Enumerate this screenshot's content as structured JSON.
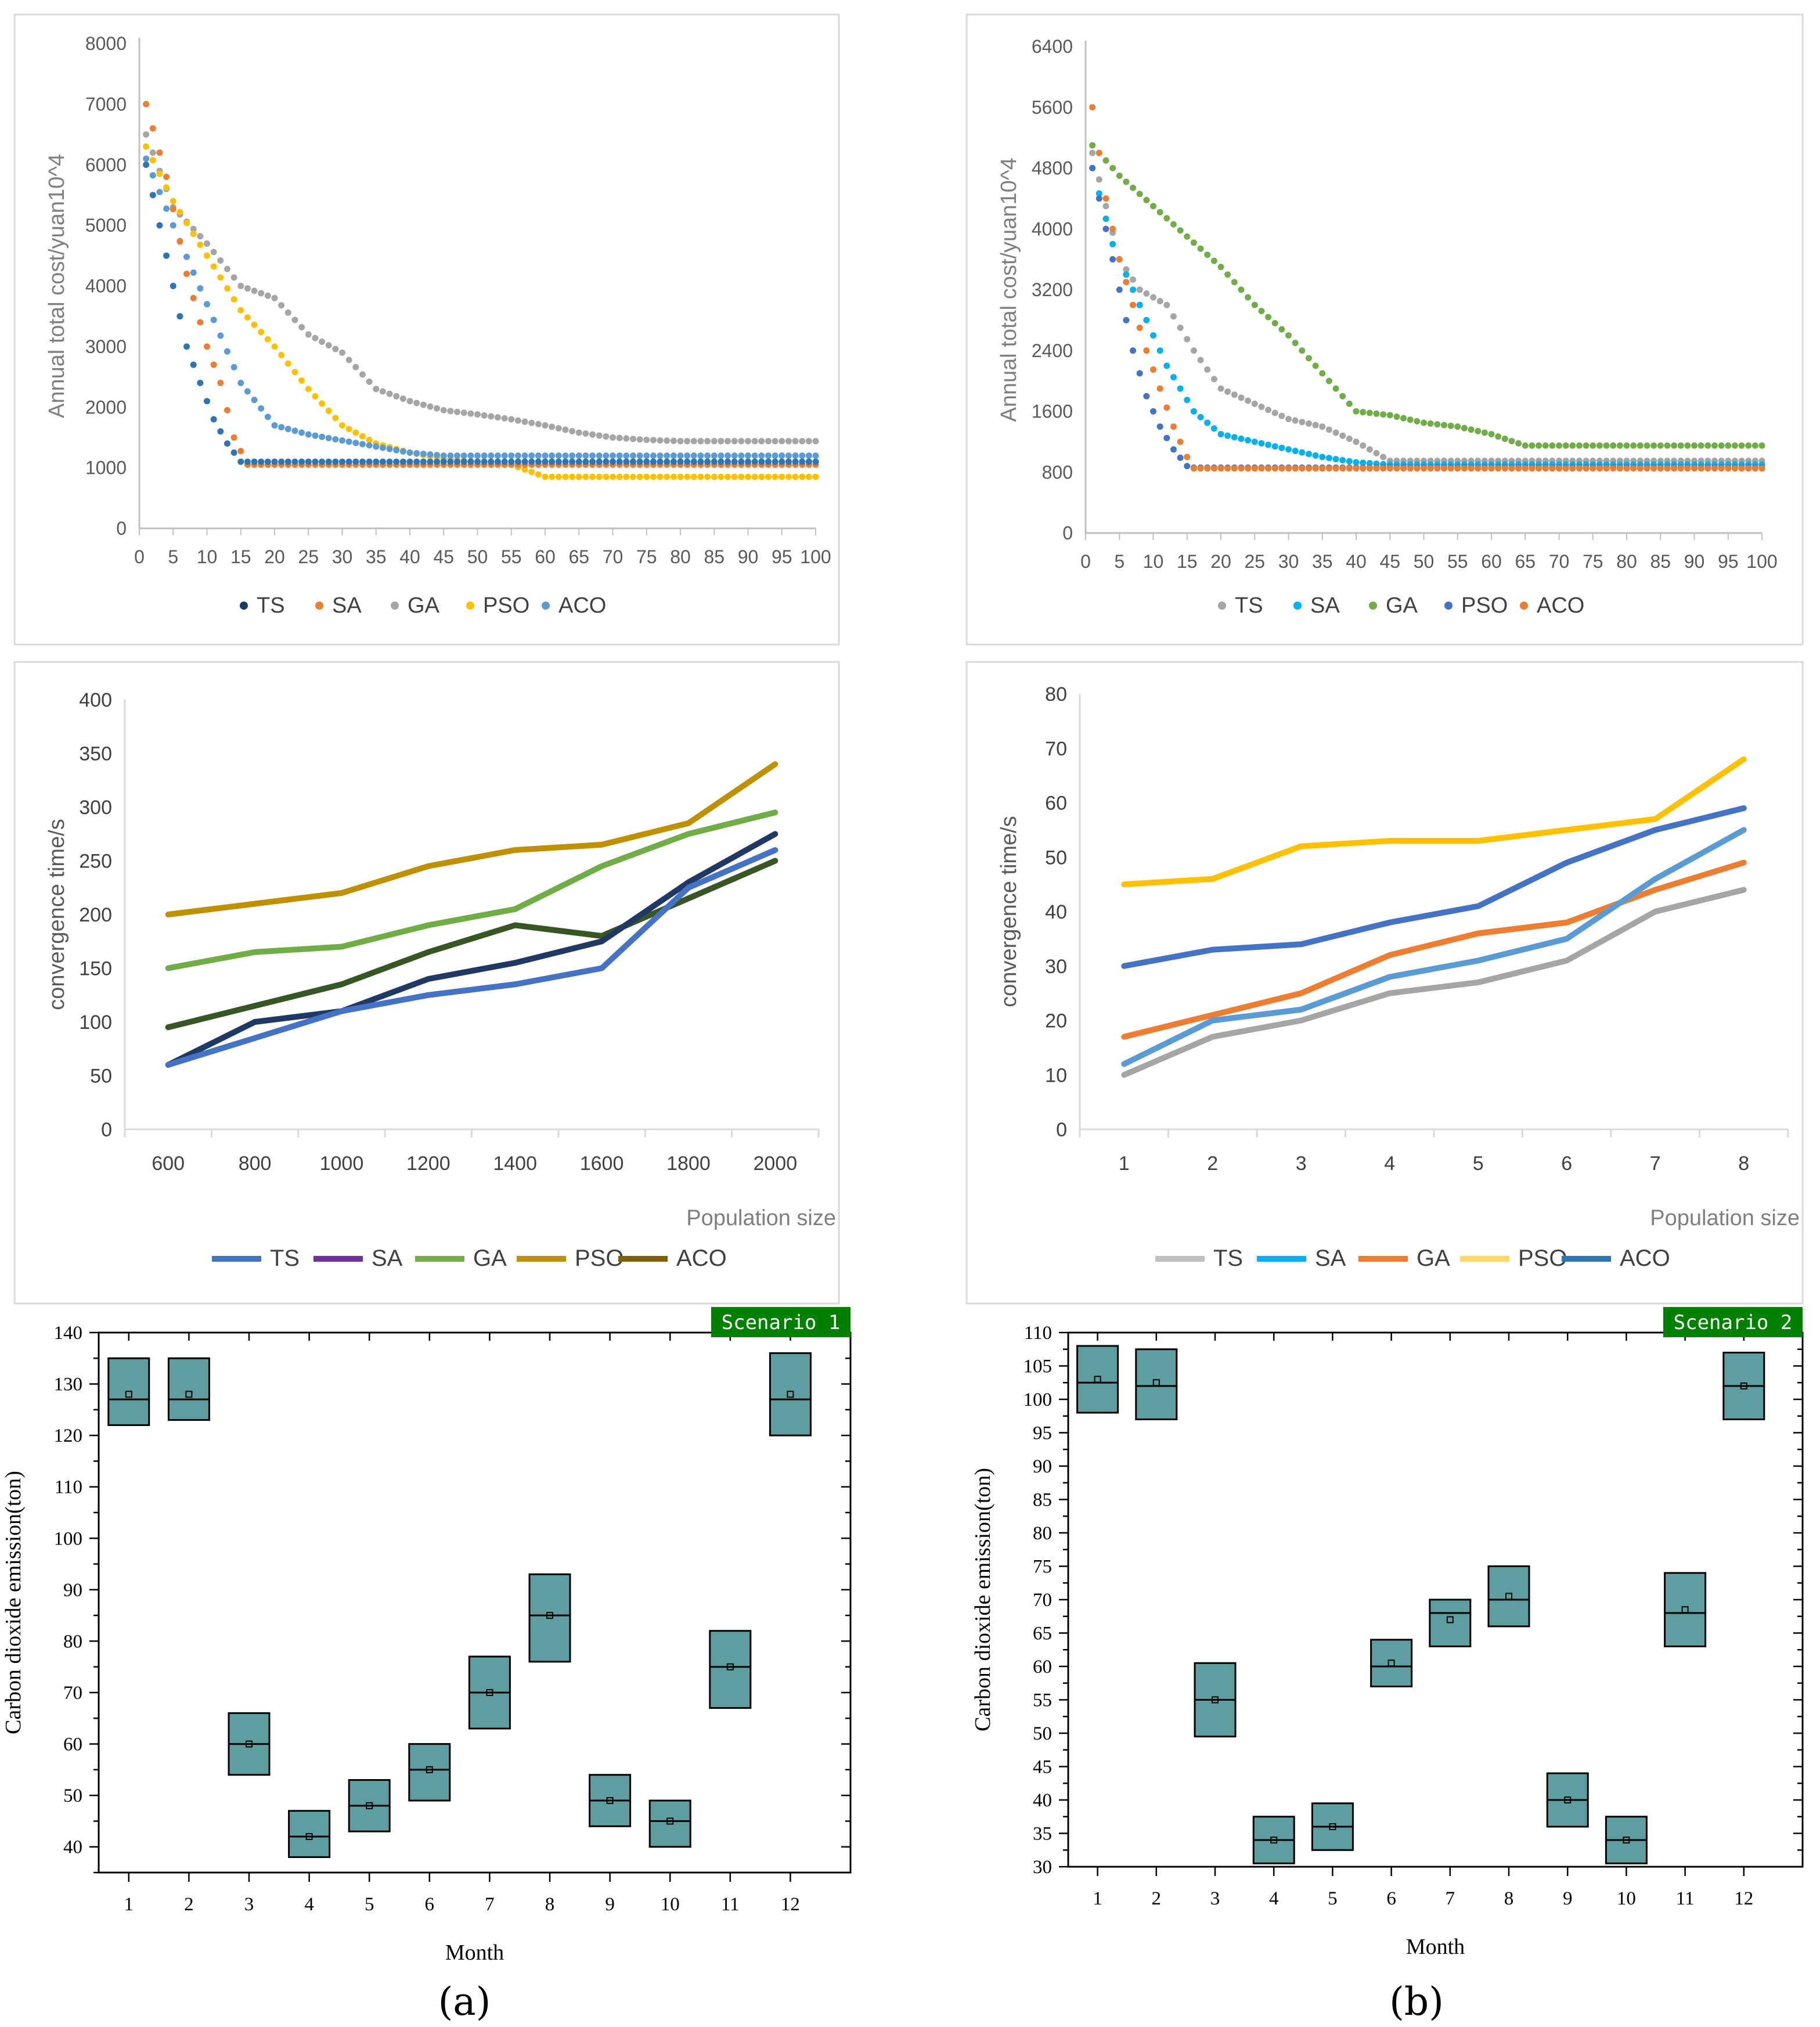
{
  "colors": {
    "TS": "#2e75b6",
    "SA": "#ed7d31",
    "GA": "#a5a5a5",
    "PSO": "#ffc000",
    "ACO": "#5b9bd5",
    "green": "#70ad47",
    "navy": "#203864",
    "olive": "#7f6000",
    "gold": "#bf9000",
    "darkgreen": "#375623",
    "box": "#5f9ea0",
    "badge": "#008000"
  },
  "panel_labels": [
    "(a)",
    "(b)"
  ],
  "chart_data": [
    {
      "id": "cost-a",
      "type": "scatter",
      "ylabel": "Annual total cost/yuan10^4",
      "xlim": [
        0,
        100
      ],
      "ylim": [
        0,
        8000
      ],
      "xticks": [
        0,
        5,
        10,
        15,
        20,
        25,
        30,
        35,
        40,
        45,
        50,
        55,
        60,
        65,
        70,
        75,
        80,
        85,
        90,
        95,
        100
      ],
      "yticks": [
        0,
        1000,
        2000,
        3000,
        4000,
        5000,
        6000,
        7000,
        8000
      ],
      "legend": [
        {
          "name": "TS",
          "color": "#203864"
        },
        {
          "name": "SA",
          "color": "#ed7d31"
        },
        {
          "name": "GA",
          "color": "#a5a5a5"
        },
        {
          "name": "PSO",
          "color": "#ffc000"
        },
        {
          "name": "ACO",
          "color": "#5b9bd5"
        }
      ],
      "series": [
        {
          "name": "GA",
          "color": "#a5a5a5",
          "x": [
            1,
            5,
            10,
            15,
            20,
            25,
            30,
            35,
            40,
            45,
            50,
            55,
            60,
            65,
            70,
            75,
            80,
            85,
            90,
            95,
            100
          ],
          "y": [
            6500,
            5300,
            4700,
            4000,
            3800,
            3200,
            2900,
            2300,
            2100,
            1950,
            1880,
            1800,
            1700,
            1580,
            1500,
            1460,
            1440,
            1440,
            1440,
            1440,
            1440
          ]
        },
        {
          "name": "PSO",
          "color": "#ffc000",
          "x": [
            1,
            5,
            10,
            15,
            20,
            25,
            30,
            35,
            40,
            45,
            50,
            55,
            60,
            65,
            70,
            75,
            80,
            85,
            90,
            95,
            100
          ],
          "y": [
            6300,
            5400,
            4500,
            3600,
            3000,
            2300,
            1700,
            1400,
            1250,
            1150,
            1100,
            1050,
            850,
            850,
            850,
            850,
            850,
            850,
            850,
            850,
            850
          ]
        },
        {
          "name": "ACO",
          "color": "#5b9bd5",
          "x": [
            1,
            5,
            10,
            15,
            20,
            25,
            30,
            35,
            40,
            45,
            50,
            55,
            60,
            65,
            70,
            75,
            80,
            85,
            90,
            95,
            100
          ],
          "y": [
            6100,
            5000,
            3700,
            2400,
            1700,
            1550,
            1450,
            1350,
            1250,
            1200,
            1200,
            1200,
            1200,
            1200,
            1200,
            1200,
            1200,
            1200,
            1200,
            1200,
            1200
          ]
        },
        {
          "name": "SA",
          "color": "#ed7d31",
          "x": [
            1,
            4,
            7,
            10,
            12,
            14,
            16,
            20,
            30,
            40,
            50,
            60,
            70,
            80,
            90,
            100
          ],
          "y": [
            7000,
            5800,
            4200,
            3000,
            2400,
            1500,
            1050,
            1050,
            1050,
            1050,
            1050,
            1050,
            1050,
            1050,
            1050,
            1050
          ]
        },
        {
          "name": "TS",
          "color": "#2e75b6",
          "x": [
            1,
            3,
            5,
            7,
            9,
            11,
            13,
            15,
            20,
            30,
            40,
            50,
            60,
            70,
            80,
            90,
            100
          ],
          "y": [
            6000,
            5000,
            4000,
            3000,
            2400,
            1800,
            1400,
            1100,
            1100,
            1100,
            1100,
            1100,
            1100,
            1100,
            1100,
            1100,
            1100
          ]
        }
      ]
    },
    {
      "id": "cost-b",
      "type": "scatter",
      "ylabel": "Annual total cost/yuan10^4",
      "xlim": [
        0,
        100
      ],
      "ylim": [
        0,
        6400
      ],
      "xticks": [
        0,
        5,
        10,
        15,
        20,
        25,
        30,
        35,
        40,
        45,
        50,
        55,
        60,
        65,
        70,
        75,
        80,
        85,
        90,
        95,
        100
      ],
      "yticks": [
        0,
        800,
        1600,
        2400,
        3200,
        4000,
        4800,
        5600,
        6400
      ],
      "legend": [
        {
          "name": "TS",
          "color": "#a5a5a5"
        },
        {
          "name": "SA",
          "color": "#00b0f0"
        },
        {
          "name": "GA",
          "color": "#70ad47"
        },
        {
          "name": "PSO",
          "color": "#4472c4"
        },
        {
          "name": "ACO",
          "color": "#ed7d31"
        }
      ],
      "series": [
        {
          "name": "GA",
          "color": "#70ad47",
          "x": [
            1,
            5,
            10,
            15,
            20,
            25,
            30,
            35,
            40,
            45,
            50,
            55,
            60,
            65,
            70,
            75,
            80,
            85,
            90,
            95,
            100
          ],
          "y": [
            5100,
            4700,
            4300,
            3900,
            3500,
            3000,
            2600,
            2100,
            1600,
            1550,
            1450,
            1400,
            1300,
            1150,
            1150,
            1150,
            1150,
            1150,
            1150,
            1150,
            1150
          ]
        },
        {
          "name": "TS",
          "color": "#a5a5a5",
          "x": [
            1,
            5,
            8,
            12,
            16,
            20,
            25,
            30,
            35,
            40,
            45,
            50,
            60,
            70,
            80,
            90,
            100
          ],
          "y": [
            5000,
            3600,
            3200,
            3000,
            2400,
            1900,
            1700,
            1500,
            1400,
            1200,
            950,
            950,
            950,
            950,
            950,
            950,
            950
          ]
        },
        {
          "name": "SA",
          "color": "#00b0f0",
          "x": [
            1,
            4,
            8,
            12,
            16,
            20,
            25,
            30,
            35,
            40,
            45,
            50,
            60,
            70,
            80,
            90,
            100
          ],
          "y": [
            4800,
            3800,
            3000,
            2200,
            1600,
            1300,
            1200,
            1100,
            1000,
            930,
            900,
            900,
            900,
            900,
            900,
            900,
            900
          ]
        },
        {
          "name": "PSO",
          "color": "#4472c4",
          "x": [
            1,
            3,
            5,
            7,
            9,
            11,
            13,
            15,
            16,
            20,
            30,
            40,
            50,
            60,
            70,
            80,
            90,
            100
          ],
          "y": [
            4800,
            4000,
            3200,
            2400,
            1800,
            1400,
            1100,
            880,
            860,
            860,
            860,
            860,
            860,
            860,
            860,
            860,
            860,
            860
          ]
        },
        {
          "name": "ACO",
          "color": "#ed7d31",
          "x": [
            1,
            3,
            5,
            7,
            9,
            11,
            13,
            15,
            16,
            20,
            30,
            40,
            50,
            60,
            70,
            80,
            90,
            100
          ],
          "y": [
            5600,
            4400,
            3600,
            3000,
            2400,
            1900,
            1400,
            1000,
            850,
            850,
            850,
            850,
            850,
            850,
            850,
            850,
            850,
            850
          ]
        }
      ]
    },
    {
      "id": "time-a",
      "type": "line",
      "ylabel": "convergence time/s",
      "xlabel": "Population size",
      "categories": [
        "600",
        "800",
        "1000",
        "1200",
        "1400",
        "1600",
        "1800",
        "2000"
      ],
      "ylim": [
        0,
        400
      ],
      "yticks": [
        0,
        50,
        100,
        150,
        200,
        250,
        300,
        350,
        400
      ],
      "legend": [
        {
          "name": "TS",
          "color": "#4472c4"
        },
        {
          "name": "SA",
          "color": "#7030a0"
        },
        {
          "name": "GA",
          "color": "#70ad47"
        },
        {
          "name": "PSO",
          "color": "#bf9000"
        },
        {
          "name": "ACO",
          "color": "#7f6000"
        }
      ],
      "series": [
        {
          "name": "PSO",
          "color": "#bf9000",
          "values": [
            200,
            210,
            220,
            245,
            260,
            265,
            285,
            340
          ]
        },
        {
          "name": "GA",
          "color": "#70ad47",
          "values": [
            150,
            165,
            170,
            190,
            205,
            245,
            275,
            295
          ]
        },
        {
          "name": "ACO",
          "color": "#375623",
          "values": [
            95,
            115,
            135,
            165,
            190,
            180,
            215,
            250
          ]
        },
        {
          "name": "SA",
          "color": "#203864",
          "values": [
            60,
            100,
            110,
            140,
            155,
            175,
            230,
            275
          ]
        },
        {
          "name": "TS",
          "color": "#4472c4",
          "values": [
            60,
            85,
            110,
            125,
            135,
            150,
            225,
            260
          ]
        }
      ]
    },
    {
      "id": "time-b",
      "type": "line",
      "ylabel": "convergence time/s",
      "xlabel": "Population size",
      "categories": [
        "1",
        "2",
        "3",
        "4",
        "5",
        "6",
        "7",
        "8"
      ],
      "ylim": [
        0,
        80
      ],
      "yticks": [
        0,
        10,
        20,
        30,
        40,
        50,
        60,
        70,
        80
      ],
      "legend": [
        {
          "name": "TS",
          "color": "#bfbfbf"
        },
        {
          "name": "SA",
          "color": "#00b0f0"
        },
        {
          "name": "GA",
          "color": "#ed7d31"
        },
        {
          "name": "PSO",
          "color": "#ffd966"
        },
        {
          "name": "ACO",
          "color": "#2e75b6"
        }
      ],
      "series": [
        {
          "name": "PSO",
          "color": "#ffc000",
          "values": [
            45,
            46,
            52,
            53,
            53,
            55,
            57,
            68
          ]
        },
        {
          "name": "ACO",
          "color": "#4472c4",
          "values": [
            30,
            33,
            34,
            38,
            41,
            49,
            55,
            59
          ]
        },
        {
          "name": "GA",
          "color": "#ed7d31",
          "values": [
            17,
            21,
            25,
            32,
            36,
            38,
            44,
            49
          ]
        },
        {
          "name": "SA",
          "color": "#5b9bd5",
          "values": [
            12,
            20,
            22,
            28,
            31,
            35,
            46,
            55
          ]
        },
        {
          "name": "TS",
          "color": "#a5a5a5",
          "values": [
            10,
            17,
            20,
            25,
            27,
            31,
            40,
            44
          ]
        }
      ]
    },
    {
      "id": "co2-a",
      "type": "box",
      "badge": "Scenario 1",
      "xlabel": "Month",
      "ylabel": "Carbon dioxide emission(ton)",
      "categories": [
        "1",
        "2",
        "3",
        "4",
        "5",
        "6",
        "7",
        "8",
        "9",
        "10",
        "11",
        "12"
      ],
      "ylim": [
        35,
        140
      ],
      "yticks": [
        40,
        50,
        60,
        70,
        80,
        90,
        100,
        110,
        120,
        130,
        140
      ],
      "boxes": [
        {
          "q1": 122,
          "median": 127,
          "q3": 135,
          "mean": 128
        },
        {
          "q1": 123,
          "median": 127,
          "q3": 135,
          "mean": 128
        },
        {
          "q1": 54,
          "median": 60,
          "q3": 66,
          "mean": 60
        },
        {
          "q1": 38,
          "median": 42,
          "q3": 47,
          "mean": 42
        },
        {
          "q1": 43,
          "median": 48,
          "q3": 53,
          "mean": 48
        },
        {
          "q1": 49,
          "median": 55,
          "q3": 60,
          "mean": 55
        },
        {
          "q1": 63,
          "median": 70,
          "q3": 77,
          "mean": 70
        },
        {
          "q1": 76,
          "median": 85,
          "q3": 93,
          "mean": 85
        },
        {
          "q1": 44,
          "median": 49,
          "q3": 54,
          "mean": 49
        },
        {
          "q1": 40,
          "median": 45,
          "q3": 49,
          "mean": 45
        },
        {
          "q1": 67,
          "median": 75,
          "q3": 82,
          "mean": 75
        },
        {
          "q1": 120,
          "median": 127,
          "q3": 136,
          "mean": 128
        }
      ]
    },
    {
      "id": "co2-b",
      "type": "box",
      "badge": "Scenario 2",
      "xlabel": "Month",
      "ylabel": "Carbon dioxide emission(ton)",
      "categories": [
        "1",
        "2",
        "3",
        "4",
        "5",
        "6",
        "7",
        "8",
        "9",
        "10",
        "11",
        "12"
      ],
      "ylim": [
        30,
        110
      ],
      "yticks": [
        30,
        35,
        40,
        45,
        50,
        55,
        60,
        65,
        70,
        75,
        80,
        85,
        90,
        95,
        100,
        105,
        110
      ],
      "boxes": [
        {
          "q1": 98,
          "median": 102.5,
          "q3": 108,
          "mean": 103
        },
        {
          "q1": 97,
          "median": 102,
          "q3": 107.5,
          "mean": 102.5
        },
        {
          "q1": 49.5,
          "median": 55,
          "q3": 60.5,
          "mean": 55
        },
        {
          "q1": 30.5,
          "median": 34,
          "q3": 37.5,
          "mean": 34
        },
        {
          "q1": 32.5,
          "median": 36,
          "q3": 39.5,
          "mean": 36
        },
        {
          "q1": 57,
          "median": 60,
          "q3": 64,
          "mean": 60.5
        },
        {
          "q1": 63,
          "median": 68,
          "q3": 70,
          "mean": 67
        },
        {
          "q1": 66,
          "median": 70,
          "q3": 75,
          "mean": 70.5
        },
        {
          "q1": 36,
          "median": 40,
          "q3": 44,
          "mean": 40
        },
        {
          "q1": 30.5,
          "median": 34,
          "q3": 37.5,
          "mean": 34
        },
        {
          "q1": 63,
          "median": 68,
          "q3": 74,
          "mean": 68.5
        },
        {
          "q1": 97,
          "median": 102,
          "q3": 107,
          "mean": 102
        }
      ]
    }
  ]
}
